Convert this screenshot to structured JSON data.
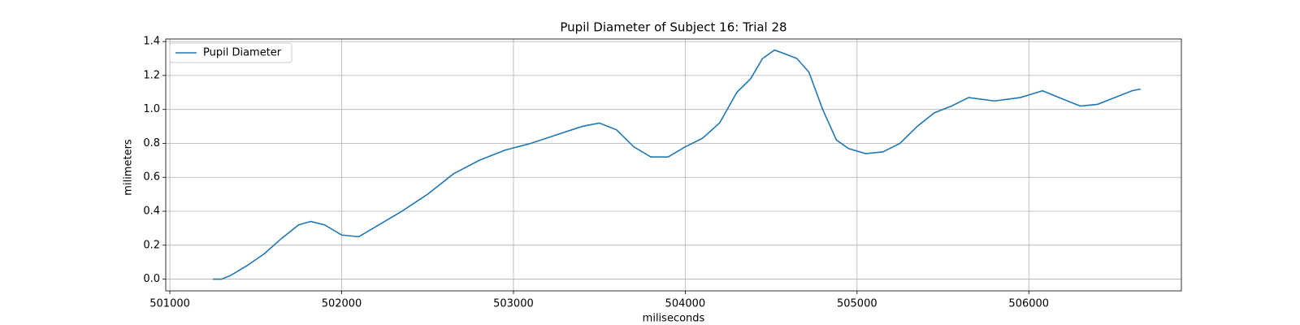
{
  "chart_data": {
    "type": "line",
    "title": "Pupil Diameter of Subject 16: Trial 28",
    "xlabel": "miliseconds",
    "ylabel": "milimeters",
    "x": [
      501250,
      501300,
      501350,
      501450,
      501550,
      501650,
      501750,
      501820,
      501900,
      502000,
      502100,
      502200,
      502350,
      502500,
      502650,
      502800,
      502950,
      503100,
      503250,
      503400,
      503500,
      503600,
      503700,
      503800,
      503900,
      504000,
      504100,
      504200,
      504300,
      504380,
      504450,
      504520,
      504600,
      504650,
      504720,
      504800,
      504880,
      504950,
      505050,
      505150,
      505250,
      505350,
      505450,
      505550,
      505650,
      505800,
      505950,
      506080,
      506200,
      506300,
      506400,
      506500,
      506600,
      506650
    ],
    "series": [
      {
        "name": "Pupil Diameter",
        "color": "#1f77b4",
        "values": [
          0.0,
          0.0,
          0.02,
          0.08,
          0.15,
          0.24,
          0.32,
          0.34,
          0.32,
          0.26,
          0.25,
          0.31,
          0.4,
          0.5,
          0.62,
          0.7,
          0.76,
          0.8,
          0.85,
          0.9,
          0.92,
          0.88,
          0.78,
          0.72,
          0.72,
          0.78,
          0.83,
          0.92,
          1.1,
          1.18,
          1.3,
          1.35,
          1.32,
          1.3,
          1.22,
          1.0,
          0.82,
          0.77,
          0.74,
          0.75,
          0.8,
          0.9,
          0.98,
          1.02,
          1.07,
          1.05,
          1.07,
          1.11,
          1.06,
          1.02,
          1.03,
          1.07,
          1.11,
          1.12
        ]
      }
    ],
    "xlim": [
      500976,
      506888
    ],
    "ylim": [
      -0.069,
      1.415
    ],
    "xticks": [
      501000,
      502000,
      503000,
      504000,
      505000,
      506000
    ],
    "yticks": [
      {
        "value": 0,
        "label": "0.0"
      },
      0.2,
      0.4,
      0.6,
      0.8,
      {
        "value": 1,
        "label": "1.0"
      },
      1.2,
      1.4
    ],
    "grid": true,
    "legend": "upper left"
  }
}
